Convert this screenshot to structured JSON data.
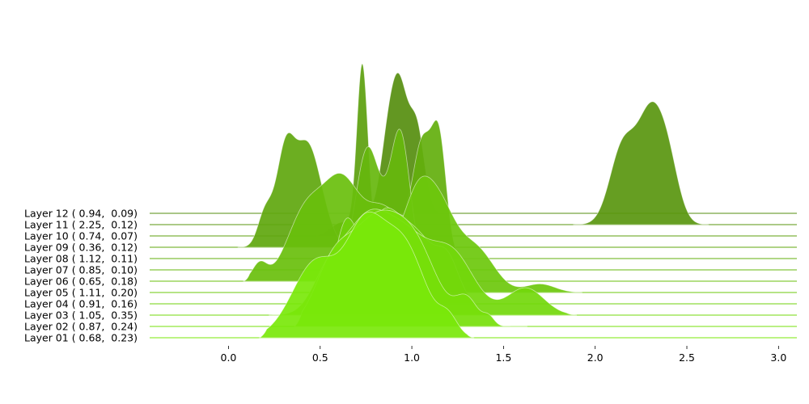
{
  "chart_data": {
    "type": "ridgeline",
    "x_ticks": [
      0.0,
      0.5,
      1.0,
      1.5,
      2.0,
      2.5,
      3.0
    ],
    "x_tick_labels": [
      "0.0",
      "0.5",
      "1.0",
      "1.5",
      "2.0",
      "2.5",
      "3.0"
    ],
    "xlim": [
      -0.43,
      3.1
    ],
    "grid": false,
    "series": [
      {
        "label": "Layer 01 ( 0.68,  0.23)",
        "color": "#79e80a",
        "components": [
          [
            0.48,
            0.13,
            0.45
          ],
          [
            0.74,
            0.1,
            0.55
          ],
          [
            0.95,
            0.12,
            0.55
          ],
          [
            1.2,
            0.05,
            0.1
          ]
        ],
        "xmin": 0.17,
        "xmax": 1.34
      },
      {
        "label": "Layer 02 ( 0.87,  0.24)",
        "color": "#76e00a",
        "components": [
          [
            0.57,
            0.1,
            0.35
          ],
          [
            0.78,
            0.12,
            0.5
          ],
          [
            1.0,
            0.13,
            0.5
          ],
          [
            1.3,
            0.06,
            0.15
          ],
          [
            1.42,
            0.03,
            0.05
          ]
        ],
        "xmin": 0.36,
        "xmax": 1.63
      },
      {
        "label": "Layer 03 ( 1.05,  0.35)",
        "color": "#73d80b",
        "components": [
          [
            0.55,
            0.09,
            0.25
          ],
          [
            0.74,
            0.11,
            0.45
          ],
          [
            0.95,
            0.13,
            0.45
          ],
          [
            1.22,
            0.12,
            0.35
          ],
          [
            1.62,
            0.1,
            0.16
          ]
        ],
        "xmin": 0.22,
        "xmax": 1.9
      },
      {
        "label": "Layer 04 ( 0.91,  0.16)",
        "color": "#6fd00b",
        "components": [
          [
            0.64,
            0.06,
            0.45
          ],
          [
            0.83,
            0.09,
            0.45
          ],
          [
            1.02,
            0.11,
            0.4
          ],
          [
            1.2,
            0.06,
            0.2
          ]
        ],
        "xmin": 0.45,
        "xmax": 1.35
      },
      {
        "label": "Layer 05 ( 1.11,  0.20)",
        "color": "#6cc80c",
        "components": [
          [
            0.8,
            0.1,
            0.3
          ],
          [
            1.02,
            0.08,
            0.45
          ],
          [
            1.15,
            0.09,
            0.45
          ],
          [
            1.35,
            0.1,
            0.25
          ],
          [
            1.7,
            0.08,
            0.05
          ]
        ],
        "xmin": 0.65,
        "xmax": 1.93
      },
      {
        "label": "Layer 06 ( 0.65,  0.18)",
        "color": "#69bf0c",
        "components": [
          [
            0.17,
            0.04,
            0.1
          ],
          [
            0.42,
            0.1,
            0.4
          ],
          [
            0.62,
            0.1,
            0.55
          ],
          [
            0.85,
            0.1,
            0.4
          ],
          [
            1.0,
            0.06,
            0.2
          ]
        ],
        "xmin": 0.08,
        "xmax": 1.14
      },
      {
        "label": "Layer 07 ( 0.85,  0.10)",
        "color": "#66b70d",
        "components": [
          [
            0.75,
            0.06,
            0.55
          ],
          [
            0.94,
            0.05,
            0.6
          ],
          [
            0.86,
            0.1,
            0.3
          ]
        ],
        "xmin": 0.5,
        "xmax": 1.2
      },
      {
        "label": "Layer 08 ( 1.12,  0.11)",
        "color": "#63af0d",
        "components": [
          [
            1.06,
            0.05,
            0.6
          ],
          [
            1.15,
            0.04,
            0.65
          ],
          [
            0.95,
            0.08,
            0.2
          ]
        ],
        "xmin": 0.8,
        "xmax": 1.4
      },
      {
        "label": "Layer 09 ( 0.36,  0.12)",
        "color": "#5fa70e",
        "components": [
          [
            0.31,
            0.05,
            0.55
          ],
          [
            0.42,
            0.06,
            0.5
          ],
          [
            0.2,
            0.04,
            0.2
          ],
          [
            0.5,
            0.06,
            0.2
          ]
        ],
        "xmin": 0.05,
        "xmax": 0.66
      },
      {
        "label": "Layer 10 ( 0.74,  0.07)",
        "color": "#5c9f0e",
        "components": [
          [
            0.73,
            0.03,
            1.0
          ],
          [
            0.62,
            0.06,
            0.08
          ]
        ],
        "xmin": 0.48,
        "xmax": 0.92
      },
      {
        "label": "Layer 11 ( 2.25,  0.12)",
        "color": "#59960f",
        "components": [
          [
            2.15,
            0.07,
            0.45
          ],
          [
            2.3,
            0.07,
            0.6
          ],
          [
            2.4,
            0.06,
            0.3
          ]
        ],
        "xmin": 1.88,
        "xmax": 2.62
      },
      {
        "label": "Layer 12 ( 0.94,  0.09)",
        "color": "#568e0f",
        "components": [
          [
            0.93,
            0.05,
            0.75
          ],
          [
            1.03,
            0.04,
            0.45
          ],
          [
            0.86,
            0.04,
            0.25
          ]
        ],
        "xmin": 0.55,
        "xmax": 1.2
      }
    ]
  }
}
